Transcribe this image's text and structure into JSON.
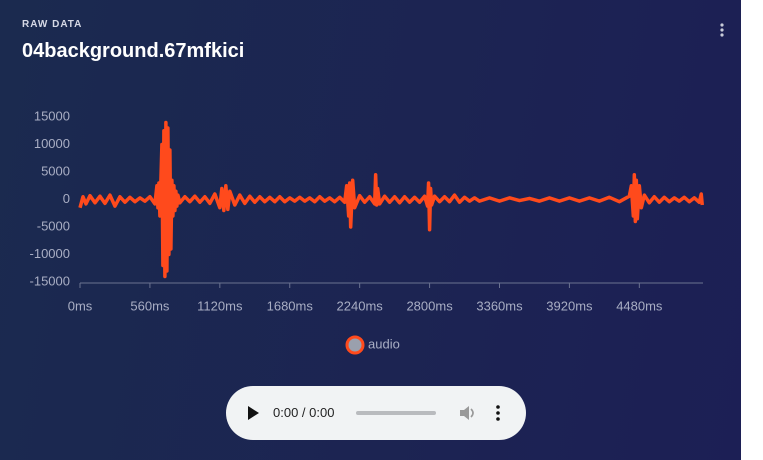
{
  "header": {
    "kicker": "RAW DATA",
    "title": "04background.67mfkici"
  },
  "chart_data": {
    "type": "line",
    "xlim": [
      0,
      4990
    ],
    "ylim": [
      -15000,
      15000
    ],
    "xticks": [
      {
        "value": 0,
        "label": "0ms"
      },
      {
        "value": 560,
        "label": "560ms"
      },
      {
        "value": 1120,
        "label": "1120ms"
      },
      {
        "value": 1680,
        "label": "1680ms"
      },
      {
        "value": 2240,
        "label": "2240ms"
      },
      {
        "value": 2800,
        "label": "2800ms"
      },
      {
        "value": 3360,
        "label": "3360ms"
      },
      {
        "value": 3920,
        "label": "3920ms"
      },
      {
        "value": 4480,
        "label": "4480ms"
      }
    ],
    "yticks": [
      15000,
      10000,
      5000,
      0,
      -5000,
      -10000,
      -15000
    ],
    "legend": "bottom",
    "x": [
      0,
      24,
      48,
      80,
      120,
      160,
      200,
      240,
      280,
      320,
      360,
      400,
      440,
      480,
      520,
      560,
      600,
      616,
      624,
      632,
      640,
      656,
      664,
      672,
      680,
      688,
      696,
      704,
      712,
      720,
      728,
      736,
      744,
      752,
      760,
      768,
      776,
      784,
      800,
      840,
      880,
      920,
      960,
      1000,
      1040,
      1080,
      1120,
      1136,
      1152,
      1168,
      1184,
      1200,
      1240,
      1280,
      1320,
      1360,
      1400,
      1440,
      1480,
      1520,
      1560,
      1600,
      1640,
      1680,
      1720,
      1760,
      1800,
      1840,
      1880,
      1920,
      1960,
      2000,
      2040,
      2080,
      2120,
      2136,
      2152,
      2160,
      2168,
      2184,
      2200,
      2240,
      2280,
      2320,
      2360,
      2368,
      2376,
      2384,
      2400,
      2440,
      2480,
      2520,
      2560,
      2600,
      2640,
      2680,
      2720,
      2760,
      2784,
      2792,
      2800,
      2808,
      2816,
      2840,
      2880,
      2920,
      2960,
      3000,
      3040,
      3080,
      3120,
      3160,
      3200,
      3280,
      3360,
      3440,
      3520,
      3600,
      3680,
      3760,
      3840,
      3920,
      4000,
      4080,
      4160,
      4240,
      4320,
      4400,
      4416,
      4432,
      4440,
      4448,
      4456,
      4464,
      4480,
      4496,
      4520,
      4560,
      4600,
      4640,
      4680,
      4720,
      4760,
      4800,
      4840,
      4880,
      4920,
      4960,
      4976,
      4984
    ],
    "series": [
      {
        "name": "audio",
        "color": "#ff4a1c",
        "values": [
          -1500,
          500,
          -800,
          700,
          -600,
          600,
          -700,
          800,
          -1200,
          500,
          -500,
          400,
          -400,
          300,
          -300,
          500,
          -800,
          2500,
          -1500,
          3000,
          -3000,
          10000,
          -12000,
          12500,
          -14000,
          14000,
          -13000,
          13000,
          -10000,
          9000,
          -9000,
          3500,
          -3000,
          2500,
          -2000,
          1500,
          -1200,
          800,
          -600,
          500,
          -400,
          600,
          -500,
          500,
          -700,
          1000,
          -1500,
          2000,
          -2000,
          2500,
          -1800,
          1500,
          -1000,
          800,
          -700,
          600,
          -500,
          500,
          -400,
          400,
          -400,
          500,
          -400,
          300,
          -300,
          400,
          -300,
          300,
          -400,
          500,
          -300,
          300,
          -400,
          400,
          -500,
          2500,
          -3000,
          3000,
          -5000,
          3500,
          -1500,
          700,
          -500,
          500,
          -800,
          4500,
          -1000,
          2000,
          -800,
          600,
          -500,
          500,
          -600,
          500,
          -500,
          400,
          -500,
          600,
          -1200,
          3000,
          -5500,
          2000,
          -1000,
          600,
          -400,
          500,
          -400,
          800,
          -500,
          400,
          -300,
          300,
          -300,
          300,
          -300,
          300,
          -200,
          200,
          -300,
          300,
          -300,
          300,
          -300,
          300,
          -300,
          400,
          -400,
          600,
          2500,
          -3000,
          4500,
          -4000,
          3500,
          -3500,
          2500,
          -1500,
          800,
          -600,
          500,
          -500,
          400,
          -400,
          300,
          -300,
          400,
          -400,
          300,
          -500,
          1000,
          -1000
        ]
      }
    ]
  },
  "player": {
    "time": "0:00 / 0:00"
  }
}
